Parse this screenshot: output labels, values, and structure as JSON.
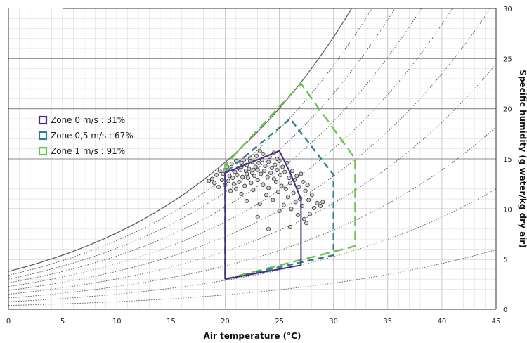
{
  "chart_data": {
    "type": "scatter",
    "title": "",
    "xlabel": "Air temperature (°C)",
    "ylabel": "Specific humidity (g water/kg dry air)",
    "xlim": [
      0,
      45
    ],
    "ylim": [
      0,
      30
    ],
    "x_ticks": [
      0,
      5,
      10,
      15,
      20,
      25,
      30,
      35,
      40,
      45
    ],
    "y_ticks": [
      0,
      5,
      10,
      15,
      20,
      25,
      30
    ],
    "grid": true,
    "y_axis_side": "right",
    "background": "psychrometric chart: saturation curve and relative humidity curves",
    "legend_position": "upper-left",
    "series": [
      {
        "name": "Zone 0 m/s : 31%",
        "kind": "polygon",
        "line_style": "solid",
        "color": "#4b2a85",
        "points": [
          [
            20,
            3.0
          ],
          [
            27,
            4.4
          ],
          [
            27,
            11.0
          ],
          [
            26,
            13.6
          ],
          [
            25,
            15.8
          ],
          [
            20,
            13.6
          ],
          [
            20,
            3.0
          ]
        ]
      },
      {
        "name": "Zone 0,5 m/s : 67%",
        "kind": "polygon",
        "line_style": "dashed",
        "color": "#2e7f8f",
        "points": [
          [
            20,
            3.0
          ],
          [
            30,
            5.4
          ],
          [
            30,
            13.4
          ],
          [
            26,
            19.0
          ],
          [
            20,
            13.6
          ],
          [
            20,
            3.0
          ]
        ]
      },
      {
        "name": "Zone 1 m/s : 91%",
        "kind": "polygon",
        "line_style": "dashed",
        "color": "#6cc24a",
        "points": [
          [
            20,
            3.0
          ],
          [
            32,
            6.3
          ],
          [
            32,
            15.0
          ],
          [
            27,
            22.5
          ],
          [
            20,
            14.4
          ],
          [
            20,
            3.0
          ]
        ]
      }
    ],
    "observations": {
      "marker": "hollow circle",
      "color": "#555555",
      "points": [
        [
          18.5,
          12.8
        ],
        [
          18.8,
          13.0
        ],
        [
          19.0,
          12.6
        ],
        [
          19.2,
          13.4
        ],
        [
          19.4,
          12.2
        ],
        [
          19.5,
          13.8
        ],
        [
          19.7,
          12.9
        ],
        [
          19.8,
          13.5
        ],
        [
          20.0,
          12.4
        ],
        [
          20.0,
          13.9
        ],
        [
          20.2,
          14.2
        ],
        [
          20.3,
          12.8
        ],
        [
          20.4,
          13.3
        ],
        [
          20.5,
          11.8
        ],
        [
          20.6,
          14.5
        ],
        [
          20.7,
          13.1
        ],
        [
          20.8,
          12.5
        ],
        [
          20.9,
          13.7
        ],
        [
          21.0,
          14.8
        ],
        [
          21.0,
          12.0
        ],
        [
          21.1,
          13.4
        ],
        [
          21.2,
          14.1
        ],
        [
          21.3,
          12.7
        ],
        [
          21.4,
          13.9
        ],
        [
          21.5,
          14.6
        ],
        [
          21.5,
          11.5
        ],
        [
          21.6,
          13.2
        ],
        [
          21.7,
          14.9
        ],
        [
          21.8,
          12.3
        ],
        [
          21.9,
          13.8
        ],
        [
          22.0,
          14.4
        ],
        [
          22.0,
          10.8
        ],
        [
          22.1,
          13.1
        ],
        [
          22.2,
          14.0
        ],
        [
          22.3,
          15.1
        ],
        [
          22.4,
          12.6
        ],
        [
          22.5,
          13.6
        ],
        [
          22.5,
          14.7
        ],
        [
          22.6,
          11.9
        ],
        [
          22.7,
          13.3
        ],
        [
          22.8,
          14.2
        ],
        [
          22.9,
          15.3
        ],
        [
          23.0,
          12.9
        ],
        [
          23.0,
          13.9
        ],
        [
          23.1,
          14.6
        ],
        [
          23.2,
          10.5
        ],
        [
          23.3,
          13.5
        ],
        [
          23.4,
          14.9
        ],
        [
          23.5,
          12.4
        ],
        [
          23.5,
          15.5
        ],
        [
          23.6,
          13.8
        ],
        [
          23.7,
          14.3
        ],
        [
          23.8,
          11.4
        ],
        [
          23.9,
          13.2
        ],
        [
          24.0,
          14.7
        ],
        [
          24.0,
          12.1
        ],
        [
          24.1,
          15.2
        ],
        [
          24.2,
          13.6
        ],
        [
          24.3,
          14.1
        ],
        [
          24.4,
          10.9
        ],
        [
          24.5,
          13.0
        ],
        [
          24.5,
          15.6
        ],
        [
          24.6,
          14.4
        ],
        [
          24.7,
          12.7
        ],
        [
          24.8,
          13.9
        ],
        [
          24.9,
          11.7
        ],
        [
          25.0,
          14.8
        ],
        [
          25.0,
          9.8
        ],
        [
          25.1,
          13.4
        ],
        [
          25.2,
          12.3
        ],
        [
          25.3,
          14.2
        ],
        [
          25.4,
          10.4
        ],
        [
          25.5,
          13.7
        ],
        [
          25.6,
          12.0
        ],
        [
          25.7,
          14.6
        ],
        [
          25.8,
          11.2
        ],
        [
          25.9,
          13.1
        ],
        [
          26.0,
          12.6
        ],
        [
          26.1,
          10.0
        ],
        [
          26.2,
          13.8
        ],
        [
          26.3,
          11.6
        ],
        [
          26.4,
          12.9
        ],
        [
          26.5,
          10.7
        ],
        [
          26.6,
          13.3
        ],
        [
          26.7,
          9.4
        ],
        [
          26.8,
          12.2
        ],
        [
          26.9,
          11.0
        ],
        [
          27.0,
          13.5
        ],
        [
          27.1,
          10.3
        ],
        [
          27.2,
          12.7
        ],
        [
          27.3,
          9.0
        ],
        [
          27.4,
          11.8
        ],
        [
          27.5,
          8.6
        ],
        [
          27.6,
          12.4
        ],
        [
          27.7,
          10.9
        ],
        [
          27.8,
          9.5
        ],
        [
          28.0,
          11.4
        ],
        [
          28.2,
          10.1
        ],
        [
          28.5,
          10.6
        ],
        [
          28.8,
          10.3
        ],
        [
          29.0,
          10.7
        ],
        [
          26.0,
          8.2
        ],
        [
          24.0,
          8.0
        ],
        [
          23.0,
          9.2
        ],
        [
          21.5,
          14.2
        ],
        [
          22.0,
          13.5
        ],
        [
          22.3,
          14.8
        ],
        [
          22.6,
          13.9
        ],
        [
          23.2,
          15.8
        ],
        [
          24.8,
          15.0
        ]
      ]
    }
  }
}
